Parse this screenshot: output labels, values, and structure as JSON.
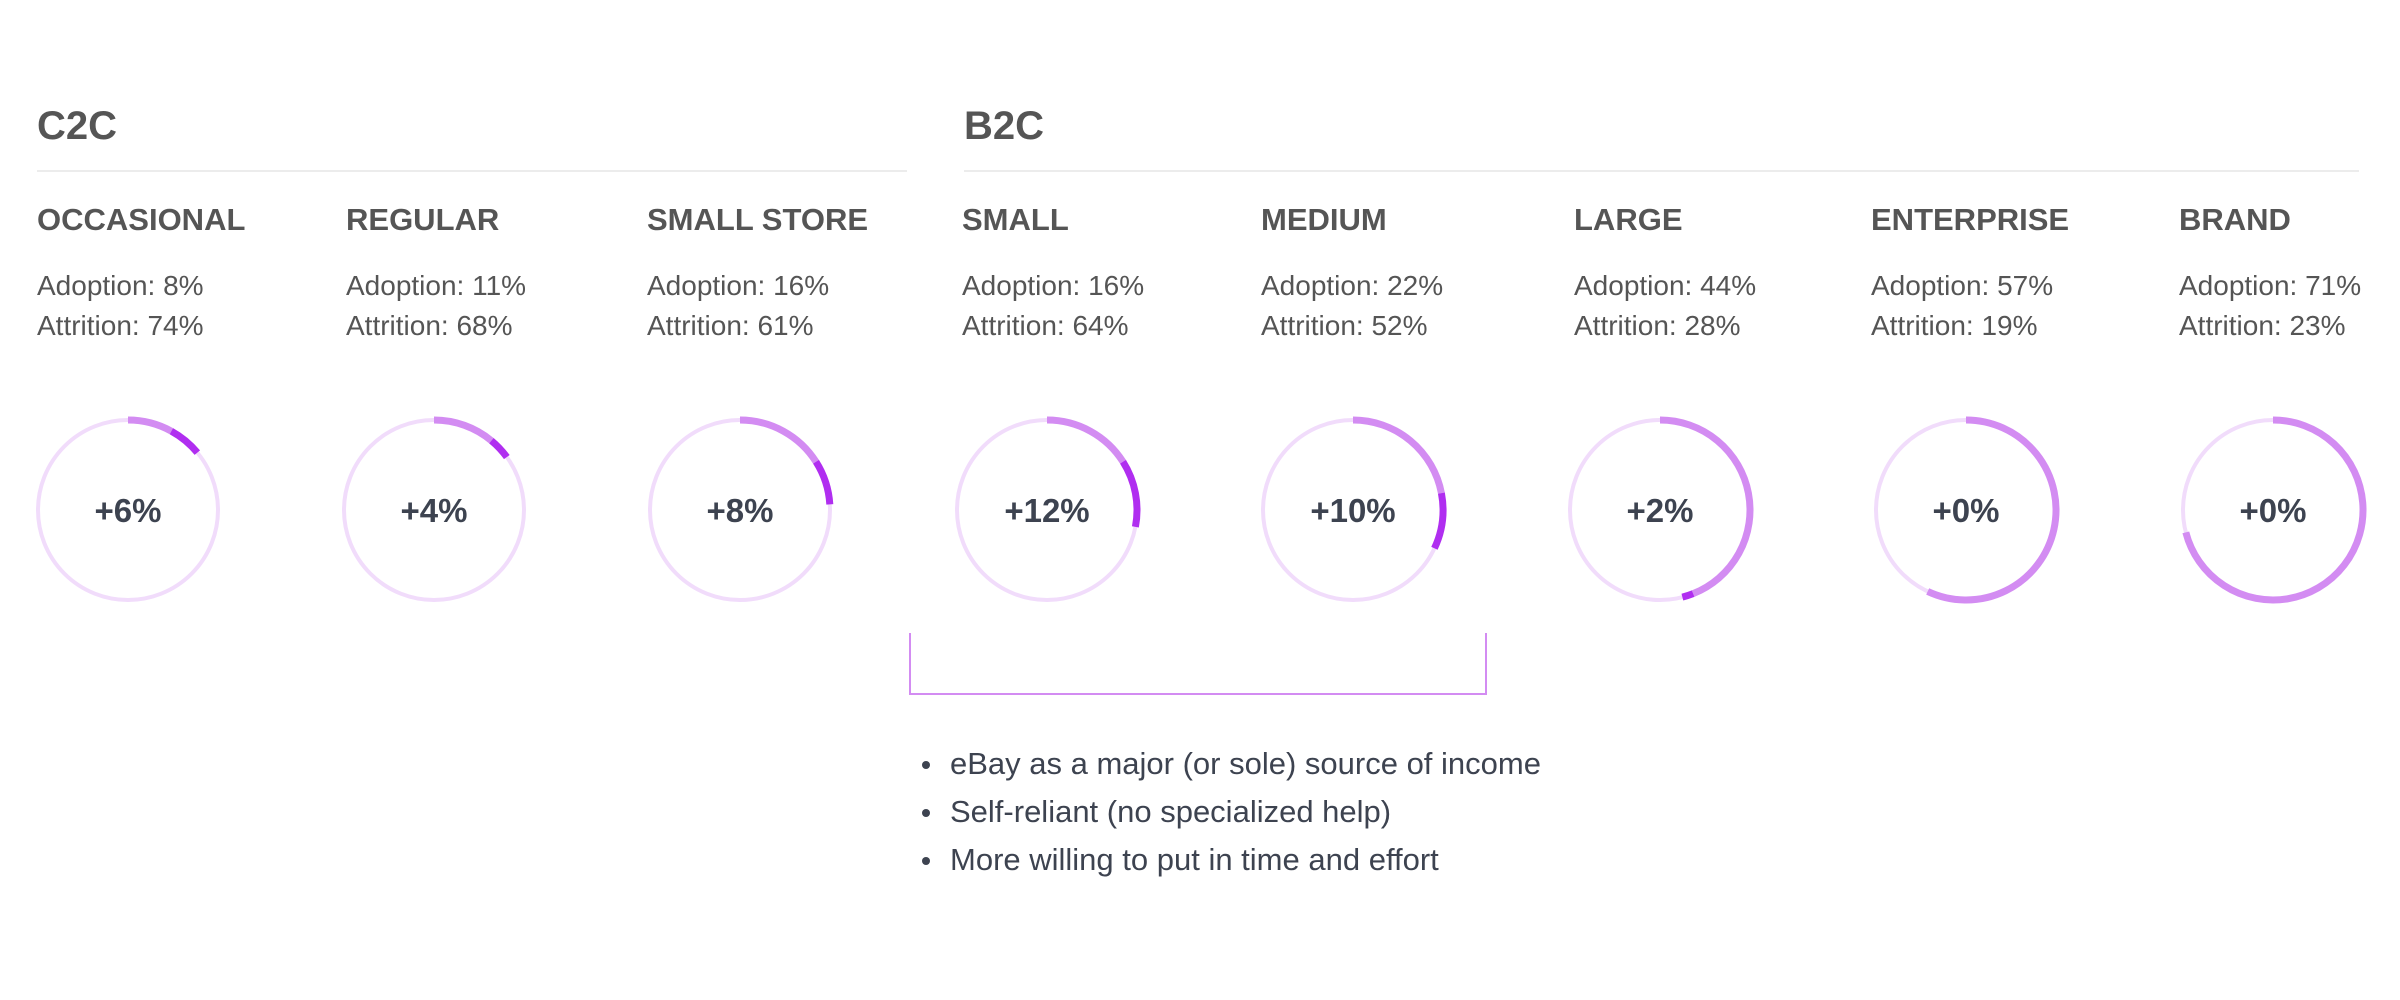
{
  "groups": {
    "c2c": {
      "label": "C2C"
    },
    "b2c": {
      "label": "B2C"
    }
  },
  "colors": {
    "ring_track": "#f1dcfb",
    "ring_base": "#d38cf2",
    "ring_accent": "#b02ef0",
    "bracket": "#d38cf2"
  },
  "chart_data": {
    "type": "donut",
    "segments": [
      {
        "group": "C2C",
        "name": "OCCASIONAL",
        "adoption_label": "Adoption: 8%",
        "attrition_label": "Attrition: 74%",
        "center_label": "+6%",
        "adoption": 8,
        "increment": 6
      },
      {
        "group": "C2C",
        "name": "REGULAR",
        "adoption_label": "Adoption: 11%",
        "attrition_label": "Attrition: 68%",
        "center_label": "+4%",
        "adoption": 11,
        "increment": 4
      },
      {
        "group": "C2C",
        "name": "SMALL STORE",
        "adoption_label": "Adoption: 16%",
        "attrition_label": "Attrition: 61%",
        "center_label": "+8%",
        "adoption": 16,
        "increment": 8
      },
      {
        "group": "B2C",
        "name": "SMALL",
        "adoption_label": "Adoption: 16%",
        "attrition_label": "Attrition: 64%",
        "center_label": "+12%",
        "adoption": 16,
        "increment": 12
      },
      {
        "group": "B2C",
        "name": "MEDIUM",
        "adoption_label": "Adoption: 22%",
        "attrition_label": "Attrition: 52%",
        "center_label": "+10%",
        "adoption": 22,
        "increment": 10
      },
      {
        "group": "B2C",
        "name": "LARGE",
        "adoption_label": "Adoption: 44%",
        "attrition_label": "Attrition: 28%",
        "center_label": "+2%",
        "adoption": 44,
        "increment": 2
      },
      {
        "group": "B2C",
        "name": "ENTERPRISE",
        "adoption_label": "Adoption: 57%",
        "attrition_label": "Attrition: 19%",
        "center_label": "+0%",
        "adoption": 57,
        "increment": 0
      },
      {
        "group": "B2C",
        "name": "BRAND",
        "adoption_label": "Adoption: 71%",
        "attrition_label": "Attrition: 23%",
        "center_label": "+0%",
        "adoption": 71,
        "increment": 0
      }
    ]
  },
  "notes": [
    "eBay as a major (or sole) source of income",
    "Self-reliant (no specialized help)",
    "More willing to put in time and effort"
  ]
}
